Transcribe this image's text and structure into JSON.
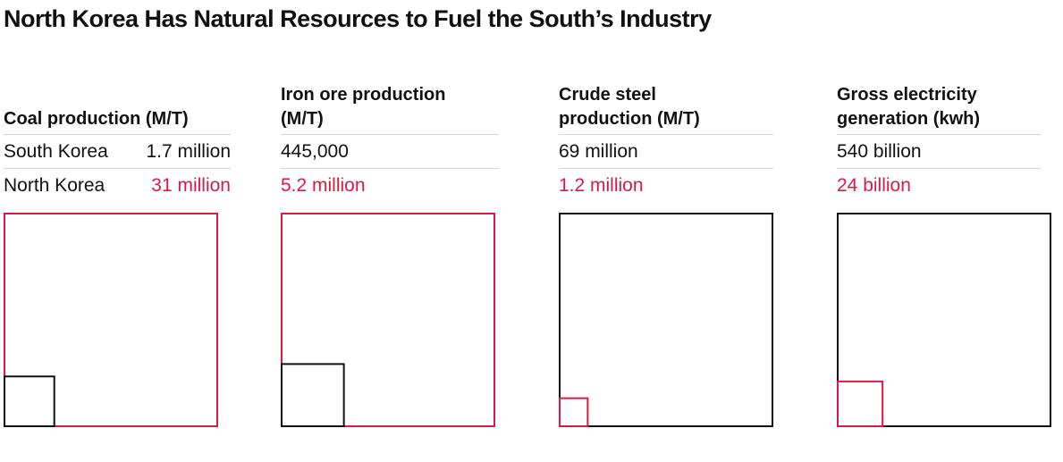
{
  "title": "North Korea Has Natural Resources to Fuel the South’s Industry",
  "colors": {
    "north": "#d41c45",
    "south": "#111111"
  },
  "row_labels": {
    "south": "South Korea",
    "north": "North Korea"
  },
  "chart_data": [
    {
      "type": "area-square",
      "title": "Coal production (M/T)",
      "south_label": "1.7 million",
      "north_label": "31 million",
      "south_value": 1700000,
      "north_value": 31000000,
      "unit": "M/T"
    },
    {
      "type": "area-square",
      "title": "Iron ore production (M/T)",
      "south_label": "445,000",
      "north_label": "5.2 million",
      "south_value": 445000,
      "north_value": 5200000,
      "unit": "M/T"
    },
    {
      "type": "area-square",
      "title": "Crude steel production (M/T)",
      "south_label": "69 million",
      "north_label": "1.2 million",
      "south_value": 69000000,
      "north_value": 1200000,
      "unit": "M/T"
    },
    {
      "type": "area-square",
      "title": "Gross electricity generation (kwh)",
      "south_label": "540 billion",
      "north_label": "24 billion",
      "south_value": 540000000000,
      "north_value": 24000000000,
      "unit": "kwh"
    }
  ]
}
